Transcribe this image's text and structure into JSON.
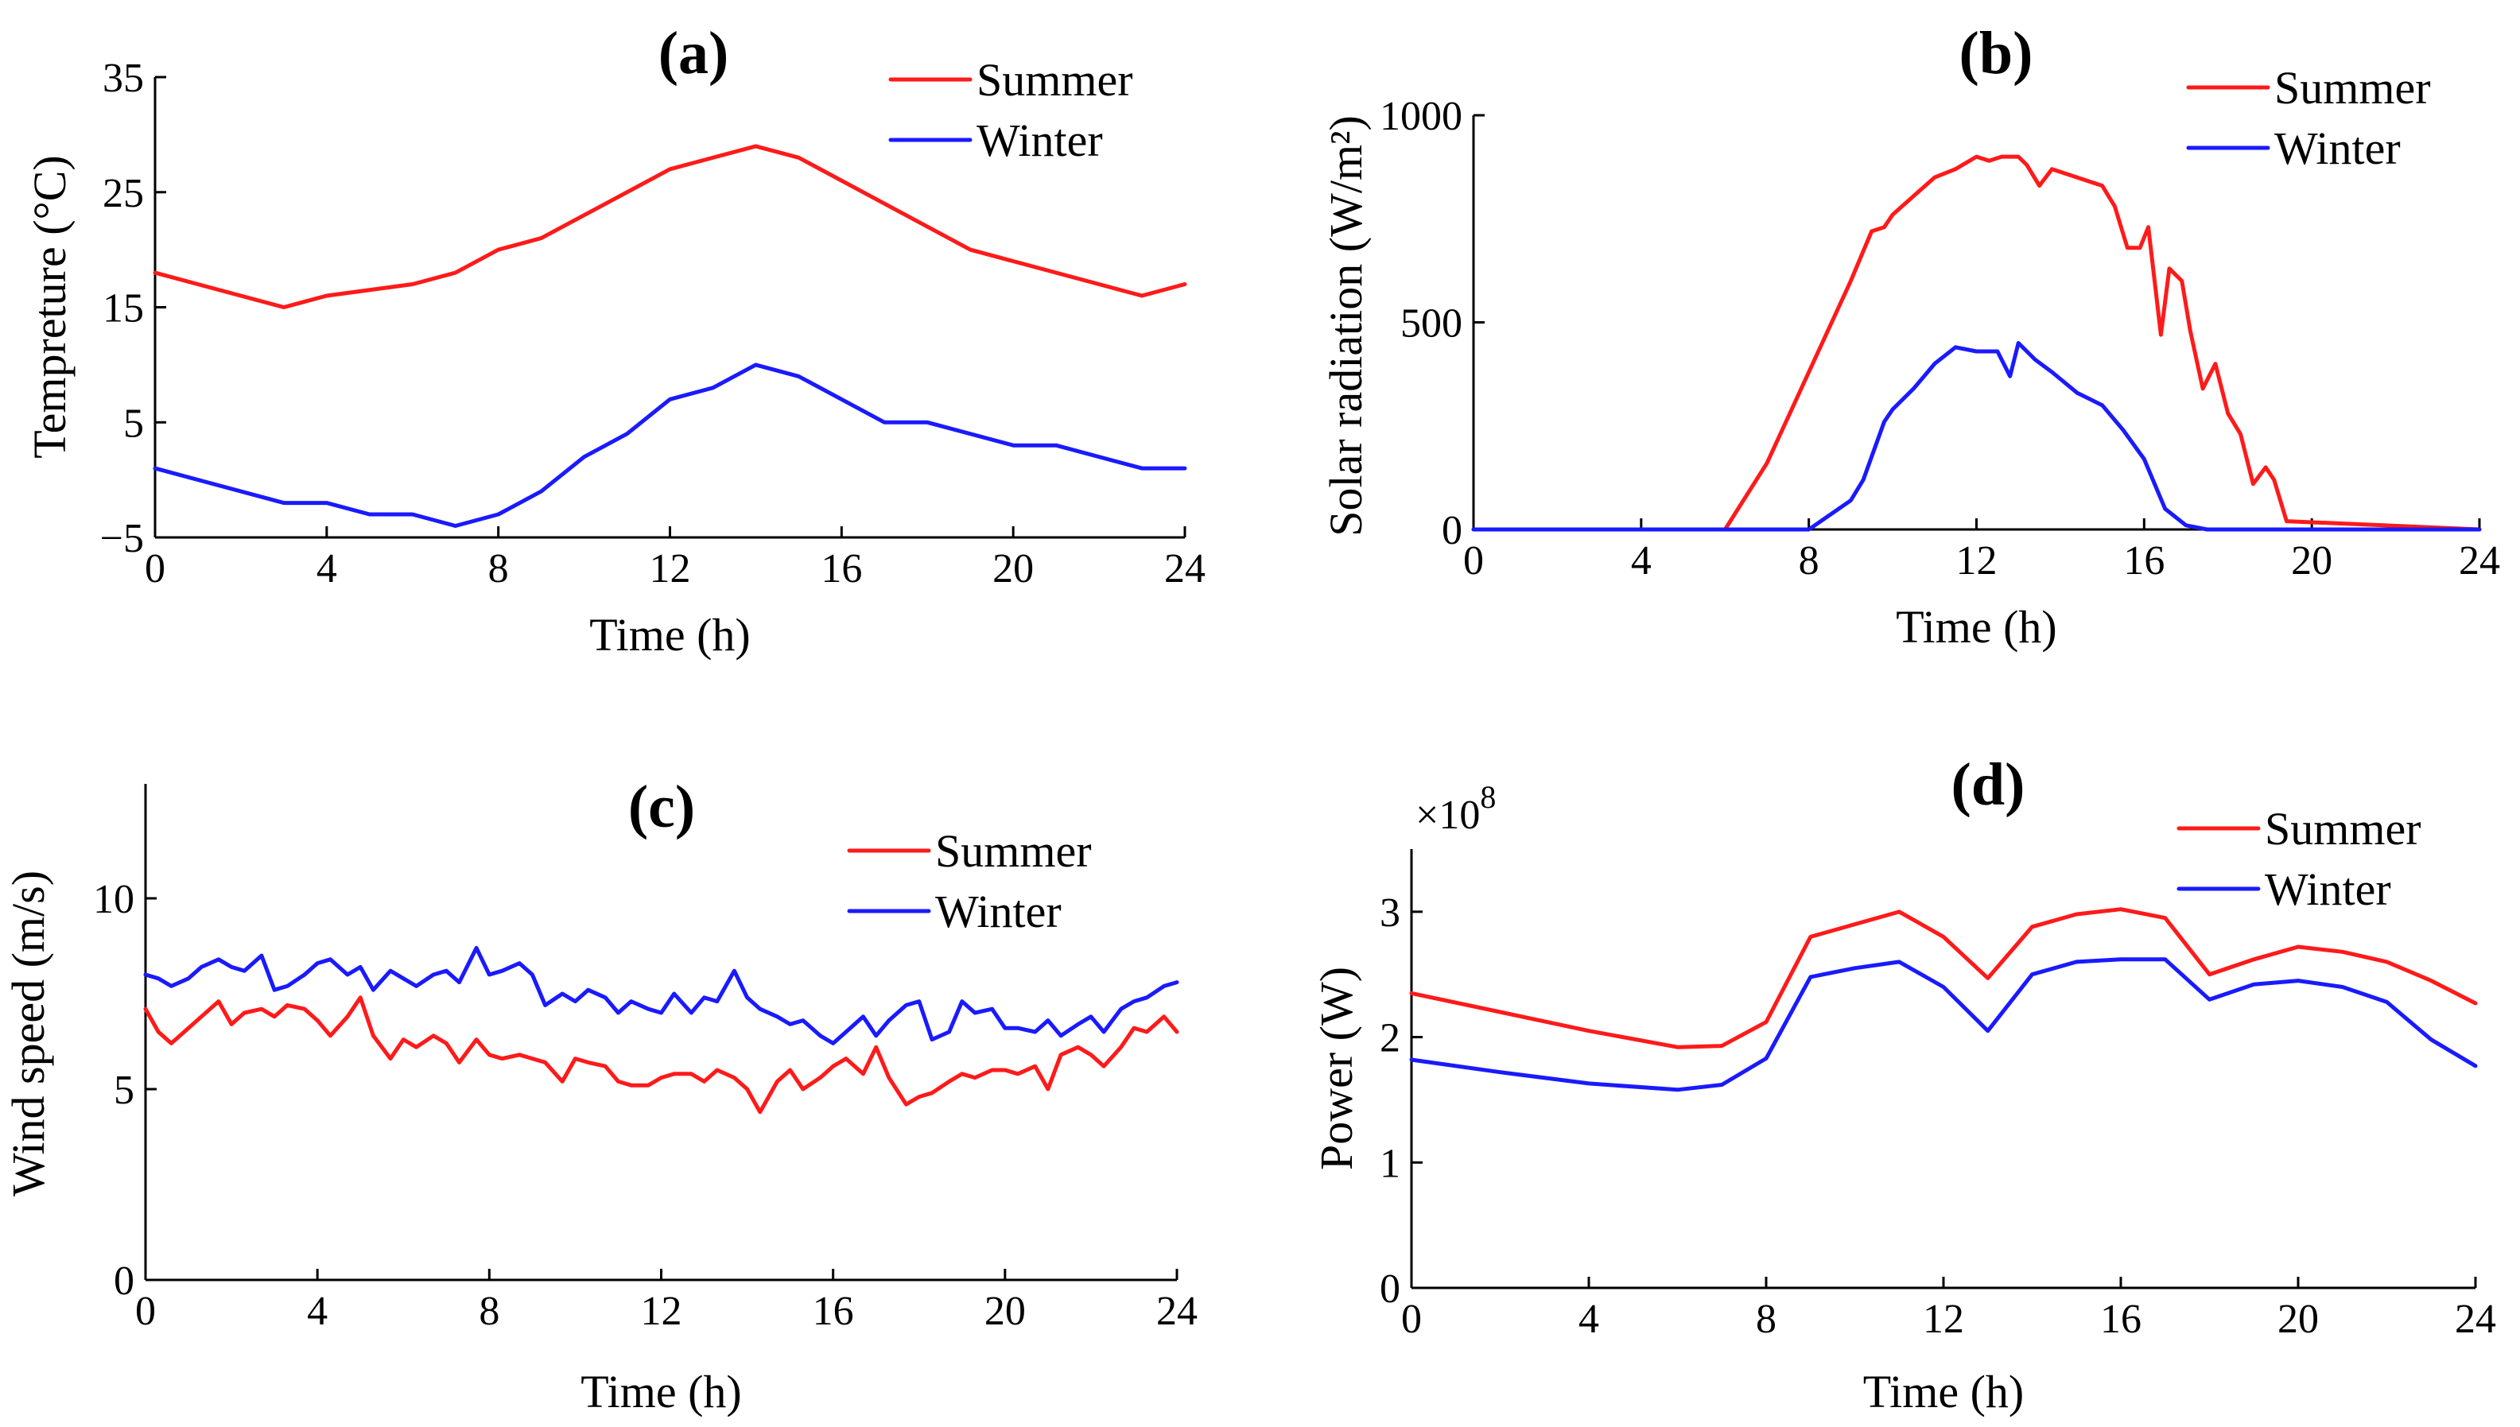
{
  "colors": {
    "summer": "#ff1a1a",
    "winter": "#1a1aff"
  },
  "chart_data": [
    {
      "id": "a",
      "type": "line",
      "title": "(a)",
      "xlabel": "Time (h)",
      "ylabel": "Tempreture (°C)",
      "xlim": [
        0,
        24
      ],
      "ylim": [
        -5,
        35
      ],
      "xticks": [
        0,
        4,
        8,
        12,
        16,
        20,
        24
      ],
      "yticks": [
        -5,
        5,
        15,
        25,
        35
      ],
      "ytick_labels": [
        "−5",
        "5",
        "15",
        "25",
        "35"
      ],
      "legend": "top-right",
      "series": [
        {
          "name": "Summer",
          "color_key": "summer",
          "x": [
            0,
            3,
            4,
            6,
            7,
            8,
            9,
            12,
            14,
            15,
            19,
            23,
            24
          ],
          "y": [
            18,
            15,
            16,
            17,
            18,
            20,
            21,
            27,
            29,
            28,
            20,
            16,
            17
          ]
        },
        {
          "name": "Winter",
          "color_key": "winter",
          "x": [
            0,
            3,
            4,
            5,
            6,
            7,
            8,
            9,
            10,
            11,
            12,
            13,
            14,
            15,
            17,
            18,
            20,
            21,
            23,
            24
          ],
          "y": [
            1,
            -2,
            -2,
            -3,
            -3,
            -4,
            -3,
            -1,
            2,
            4,
            7,
            8,
            10,
            9,
            5,
            5,
            3,
            3,
            1,
            1
          ]
        }
      ]
    },
    {
      "id": "b",
      "type": "line",
      "title": "(b)",
      "xlabel": "Time (h)",
      "ylabel": "Solar radiation (W/m²)",
      "xlim": [
        0,
        24
      ],
      "ylim": [
        0,
        1000
      ],
      "xticks": [
        0,
        4,
        8,
        12,
        16,
        20,
        24
      ],
      "yticks": [
        0,
        500,
        1000
      ],
      "ytick_labels": [
        "0",
        "500",
        "1000"
      ],
      "legend": "top-right",
      "series": [
        {
          "name": "Summer",
          "color_key": "summer",
          "x": [
            0,
            6,
            7,
            8,
            9,
            9.5,
            9.8,
            10,
            11,
            11.5,
            12,
            12.3,
            12.6,
            13,
            13.2,
            13.5,
            13.8,
            15,
            15.3,
            15.6,
            15.9,
            16.1,
            16.4,
            16.6,
            16.9,
            17.1,
            17.4,
            17.7,
            18,
            18.3,
            18.6,
            18.9,
            19.1,
            19.4,
            24
          ],
          "y": [
            0,
            0,
            160,
            380,
            600,
            720,
            730,
            760,
            850,
            870,
            900,
            890,
            900,
            900,
            880,
            830,
            870,
            830,
            780,
            680,
            680,
            730,
            470,
            630,
            600,
            480,
            340,
            400,
            280,
            230,
            110,
            150,
            120,
            20,
            0
          ]
        },
        {
          "name": "Winter",
          "color_key": "winter",
          "x": [
            0,
            8,
            9,
            9.3,
            9.8,
            10,
            10.5,
            11,
            11.5,
            12,
            12.5,
            12.8,
            13,
            13.4,
            13.8,
            14.4,
            15,
            15.5,
            16,
            16.5,
            17,
            17.5,
            24
          ],
          "y": [
            0,
            0,
            70,
            120,
            260,
            290,
            340,
            400,
            440,
            430,
            430,
            370,
            450,
            410,
            380,
            330,
            300,
            240,
            170,
            50,
            10,
            0,
            0
          ]
        }
      ]
    },
    {
      "id": "c",
      "type": "line",
      "title": "(c)",
      "xlabel": "Time (h)",
      "ylabel": "Wind speed (m/s)",
      "xlim": [
        0,
        24
      ],
      "ylim": [
        0,
        13
      ],
      "xticks": [
        0,
        4,
        8,
        12,
        16,
        20,
        24
      ],
      "yticks": [
        0,
        5,
        10
      ],
      "ytick_labels": [
        "0",
        "5",
        "10"
      ],
      "legend": "top-right",
      "series": [
        {
          "name": "Summer",
          "color_key": "summer",
          "x": [
            0,
            0.3,
            0.6,
            1,
            1.3,
            1.7,
            2,
            2.3,
            2.7,
            3,
            3.3,
            3.7,
            4,
            4.3,
            4.7,
            5,
            5.3,
            5.7,
            6,
            6.3,
            6.7,
            7,
            7.3,
            7.7,
            8,
            8.3,
            8.7,
            9,
            9.3,
            9.7,
            10,
            10.3,
            10.7,
            11,
            11.3,
            11.7,
            12,
            12.3,
            12.7,
            13,
            13.3,
            13.7,
            14,
            14.3,
            14.7,
            15,
            15.3,
            15.7,
            16,
            16.3,
            16.7,
            17,
            17.3,
            17.7,
            18,
            18.3,
            18.7,
            19,
            19.3,
            19.7,
            20,
            20.3,
            20.7,
            21,
            21.3,
            21.7,
            22,
            22.3,
            22.7,
            23,
            23.3,
            23.7,
            24
          ],
          "y": [
            7.1,
            6.5,
            6.2,
            6.6,
            6.9,
            7.3,
            6.7,
            7.0,
            7.1,
            6.9,
            7.2,
            7.1,
            6.8,
            6.4,
            6.9,
            7.4,
            6.4,
            5.8,
            6.3,
            6.1,
            6.4,
            6.2,
            5.7,
            6.3,
            5.9,
            5.8,
            5.9,
            5.8,
            5.7,
            5.2,
            5.8,
            5.7,
            5.6,
            5.2,
            5.1,
            5.1,
            5.3,
            5.4,
            5.4,
            5.2,
            5.5,
            5.3,
            5.0,
            4.4,
            5.2,
            5.5,
            5.0,
            5.3,
            5.6,
            5.8,
            5.4,
            6.1,
            5.3,
            4.6,
            4.8,
            4.9,
            5.2,
            5.4,
            5.3,
            5.5,
            5.5,
            5.4,
            5.6,
            5.0,
            5.9,
            6.1,
            5.9,
            5.6,
            6.1,
            6.6,
            6.5,
            6.9,
            6.5
          ]
        },
        {
          "name": "Winter",
          "color_key": "winter",
          "x": [
            0,
            0.3,
            0.6,
            1,
            1.3,
            1.7,
            2,
            2.3,
            2.7,
            3,
            3.3,
            3.7,
            4,
            4.3,
            4.7,
            5,
            5.3,
            5.7,
            6,
            6.3,
            6.7,
            7,
            7.3,
            7.7,
            8,
            8.3,
            8.7,
            9,
            9.3,
            9.7,
            10,
            10.3,
            10.7,
            11,
            11.3,
            11.7,
            12,
            12.3,
            12.7,
            13,
            13.3,
            13.7,
            14,
            14.3,
            14.7,
            15,
            15.3,
            15.7,
            16,
            16.3,
            16.7,
            17,
            17.3,
            17.7,
            18,
            18.3,
            18.7,
            19,
            19.3,
            19.7,
            20,
            20.3,
            20.7,
            21,
            21.3,
            21.7,
            22,
            22.3,
            22.7,
            23,
            23.3,
            23.7,
            24
          ],
          "y": [
            8.0,
            7.9,
            7.7,
            7.9,
            8.2,
            8.4,
            8.2,
            8.1,
            8.5,
            7.6,
            7.7,
            8.0,
            8.3,
            8.4,
            8.0,
            8.2,
            7.6,
            8.1,
            7.9,
            7.7,
            8.0,
            8.1,
            7.8,
            8.7,
            8.0,
            8.1,
            8.3,
            8.0,
            7.2,
            7.5,
            7.3,
            7.6,
            7.4,
            7.0,
            7.3,
            7.1,
            7.0,
            7.5,
            7.0,
            7.4,
            7.3,
            8.1,
            7.4,
            7.1,
            6.9,
            6.7,
            6.8,
            6.4,
            6.2,
            6.5,
            6.9,
            6.4,
            6.8,
            7.2,
            7.3,
            6.3,
            6.5,
            7.3,
            7.0,
            7.1,
            6.6,
            6.6,
            6.5,
            6.8,
            6.4,
            6.7,
            6.9,
            6.5,
            7.1,
            7.3,
            7.4,
            7.7,
            7.8
          ]
        }
      ]
    },
    {
      "id": "d",
      "type": "line",
      "title": "(d)",
      "xlabel": "Time (h)",
      "ylabel": "Power (W)",
      "multiplier_base": "×10",
      "multiplier_exp": "8",
      "xlim": [
        0,
        24
      ],
      "ylim": [
        0,
        3.5
      ],
      "xticks": [
        0,
        4,
        8,
        12,
        16,
        20,
        24
      ],
      "yticks": [
        0,
        1,
        2,
        3
      ],
      "ytick_labels": [
        "0",
        "1",
        "2",
        "3"
      ],
      "legend": "top-right",
      "series": [
        {
          "name": "Summer",
          "color_key": "summer",
          "x": [
            0,
            2,
            4,
            6,
            7,
            8,
            9,
            10,
            11,
            12,
            13,
            14,
            15,
            16,
            17,
            18,
            19,
            20,
            21,
            22,
            23,
            24
          ],
          "y": [
            2.35,
            2.2,
            2.05,
            1.92,
            1.93,
            2.12,
            2.8,
            2.9,
            3.0,
            2.8,
            2.47,
            2.88,
            2.98,
            3.02,
            2.95,
            2.5,
            2.62,
            2.72,
            2.68,
            2.6,
            2.45,
            2.27
          ]
        },
        {
          "name": "Winter",
          "color_key": "winter",
          "x": [
            0,
            2,
            4,
            6,
            7,
            8,
            9,
            10,
            11,
            12,
            13,
            14,
            15,
            16,
            17,
            18,
            19,
            20,
            21,
            22,
            23,
            24
          ],
          "y": [
            1.82,
            1.72,
            1.63,
            1.58,
            1.62,
            1.83,
            2.48,
            2.55,
            2.6,
            2.4,
            2.05,
            2.5,
            2.6,
            2.62,
            2.62,
            2.3,
            2.42,
            2.45,
            2.4,
            2.28,
            1.98,
            1.77
          ]
        }
      ]
    }
  ]
}
